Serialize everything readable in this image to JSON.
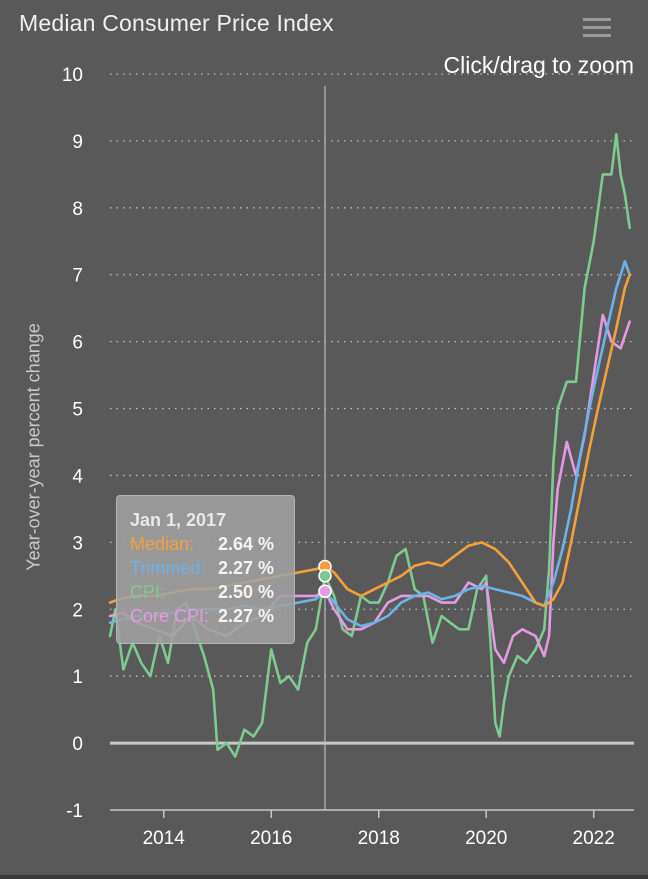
{
  "header": {
    "title": "Median Consumer Price Index",
    "zoom_hint": "Click/drag to zoom",
    "menu_icon": "hamburger-menu-icon"
  },
  "colors": {
    "median": "#f5a03d",
    "trimmed": "#6db2e8",
    "cpi": "#7fca91",
    "core": "#e39be3",
    "grid": "#c0c0c0",
    "zero": "#c8c8c8"
  },
  "tooltip": {
    "date": "Jan 1, 2017",
    "rows": [
      {
        "label": "Median:",
        "value": "2.64 %"
      },
      {
        "label": "Trimmed:",
        "value": "2.27 %"
      },
      {
        "label": "CPI:",
        "value": "2.50 %"
      },
      {
        "label": "Core CPI:",
        "value": "2.27 %"
      }
    ]
  },
  "chart_data": {
    "type": "line",
    "title": "Median Consumer Price Index",
    "xlabel": "",
    "ylabel": "Year-over-year percent change",
    "xlim": [
      2013.0,
      2022.75
    ],
    "ylim": [
      -1,
      10
    ],
    "yticks": [
      -1,
      0,
      1,
      2,
      3,
      4,
      5,
      6,
      7,
      8,
      9,
      10
    ],
    "xticks": [
      2014,
      2016,
      2018,
      2020,
      2022
    ],
    "grid": true,
    "crosshair_x": 2017.0,
    "series": [
      {
        "name": "Median",
        "color_key": "median",
        "x": [
          2013.0,
          2013.17,
          2013.5,
          2013.83,
          2014.17,
          2014.5,
          2014.83,
          2015.17,
          2015.5,
          2015.83,
          2016.17,
          2016.5,
          2016.83,
          2017.0,
          2017.17,
          2017.42,
          2017.67,
          2017.92,
          2018.17,
          2018.42,
          2018.67,
          2018.92,
          2019.17,
          2019.42,
          2019.67,
          2019.92,
          2020.17,
          2020.42,
          2020.67,
          2020.92,
          2021.08,
          2021.25,
          2021.42,
          2021.58,
          2021.75,
          2021.92,
          2022.08,
          2022.25,
          2022.42,
          2022.58,
          2022.67
        ],
        "y": [
          2.1,
          2.15,
          2.2,
          2.2,
          2.25,
          2.3,
          2.3,
          2.35,
          2.4,
          2.45,
          2.5,
          2.55,
          2.6,
          2.64,
          2.55,
          2.3,
          2.2,
          2.3,
          2.4,
          2.5,
          2.65,
          2.7,
          2.65,
          2.8,
          2.95,
          3.0,
          2.9,
          2.7,
          2.4,
          2.1,
          2.05,
          2.15,
          2.4,
          3.0,
          3.7,
          4.4,
          5.0,
          5.6,
          6.2,
          6.8,
          7.0
        ]
      },
      {
        "name": "Trimmed",
        "color_key": "trimmed",
        "x": [
          2013.0,
          2013.25,
          2013.5,
          2013.83,
          2014.17,
          2014.5,
          2014.83,
          2015.17,
          2015.5,
          2015.83,
          2016.17,
          2016.5,
          2016.83,
          2017.0,
          2017.17,
          2017.42,
          2017.67,
          2017.92,
          2018.17,
          2018.42,
          2018.67,
          2018.92,
          2019.17,
          2019.42,
          2019.67,
          2019.92,
          2020.17,
          2020.42,
          2020.67,
          2020.92,
          2021.08,
          2021.25,
          2021.42,
          2021.58,
          2021.75,
          2021.92,
          2022.08,
          2022.25,
          2022.42,
          2022.58,
          2022.67
        ],
        "y": [
          1.8,
          1.85,
          1.9,
          1.9,
          1.95,
          2.0,
          2.0,
          2.0,
          2.05,
          2.0,
          2.05,
          2.1,
          2.15,
          2.27,
          2.1,
          1.85,
          1.75,
          1.8,
          1.9,
          2.1,
          2.2,
          2.25,
          2.15,
          2.2,
          2.3,
          2.35,
          2.3,
          2.25,
          2.2,
          2.1,
          2.05,
          2.4,
          2.9,
          3.5,
          4.3,
          5.0,
          5.6,
          6.2,
          6.8,
          7.2,
          7.0
        ]
      },
      {
        "name": "CPI",
        "color_key": "cpi",
        "x": [
          2013.0,
          2013.1,
          2013.25,
          2013.42,
          2013.58,
          2013.75,
          2013.92,
          2014.08,
          2014.25,
          2014.42,
          2014.58,
          2014.75,
          2014.92,
          2015.0,
          2015.17,
          2015.33,
          2015.5,
          2015.67,
          2015.83,
          2016.0,
          2016.17,
          2016.33,
          2016.5,
          2016.67,
          2016.83,
          2017.0,
          2017.17,
          2017.33,
          2017.5,
          2017.67,
          2017.83,
          2018.0,
          2018.17,
          2018.33,
          2018.5,
          2018.67,
          2018.83,
          2019.0,
          2019.17,
          2019.33,
          2019.5,
          2019.67,
          2019.83,
          2020.0,
          2020.08,
          2020.17,
          2020.25,
          2020.33,
          2020.42,
          2020.58,
          2020.75,
          2020.92,
          2021.08,
          2021.17,
          2021.25,
          2021.33,
          2021.5,
          2021.67,
          2021.83,
          2022.0,
          2022.17,
          2022.33,
          2022.42,
          2022.5,
          2022.58,
          2022.67
        ],
        "y": [
          1.6,
          2.0,
          1.1,
          1.5,
          1.2,
          1.0,
          1.6,
          1.2,
          2.0,
          2.1,
          1.7,
          1.3,
          0.8,
          -0.1,
          0.0,
          -0.2,
          0.2,
          0.1,
          0.3,
          1.4,
          0.9,
          1.0,
          0.8,
          1.5,
          1.7,
          2.5,
          2.2,
          1.7,
          1.6,
          2.2,
          2.1,
          2.1,
          2.4,
          2.8,
          2.9,
          2.3,
          2.2,
          1.5,
          1.9,
          1.8,
          1.7,
          1.7,
          2.3,
          2.5,
          1.5,
          0.3,
          0.1,
          0.6,
          1.0,
          1.3,
          1.2,
          1.4,
          1.7,
          2.6,
          4.2,
          5.0,
          5.4,
          5.4,
          6.8,
          7.5,
          8.5,
          8.5,
          9.1,
          8.5,
          8.2,
          7.7
        ]
      },
      {
        "name": "Core CPI",
        "color_key": "core",
        "x": [
          2013.0,
          2013.25,
          2013.5,
          2013.83,
          2014.17,
          2014.5,
          2014.83,
          2015.17,
          2015.5,
          2015.83,
          2016.17,
          2016.5,
          2016.83,
          2017.0,
          2017.17,
          2017.42,
          2017.67,
          2017.92,
          2018.17,
          2018.42,
          2018.67,
          2018.92,
          2019.17,
          2019.42,
          2019.67,
          2019.92,
          2020.0,
          2020.17,
          2020.33,
          2020.5,
          2020.67,
          2020.92,
          2021.08,
          2021.17,
          2021.25,
          2021.33,
          2021.5,
          2021.67,
          2021.83,
          2022.0,
          2022.17,
          2022.33,
          2022.5,
          2022.67
        ],
        "y": [
          1.9,
          1.95,
          1.8,
          1.7,
          1.6,
          1.9,
          1.7,
          1.6,
          1.8,
          1.9,
          2.2,
          2.2,
          2.2,
          2.27,
          2.0,
          1.7,
          1.7,
          1.8,
          2.1,
          2.2,
          2.2,
          2.2,
          2.1,
          2.1,
          2.4,
          2.3,
          2.4,
          1.4,
          1.2,
          1.6,
          1.7,
          1.6,
          1.3,
          1.6,
          3.0,
          3.8,
          4.5,
          4.0,
          4.6,
          5.5,
          6.4,
          6.0,
          5.9,
          6.3
        ]
      }
    ]
  }
}
